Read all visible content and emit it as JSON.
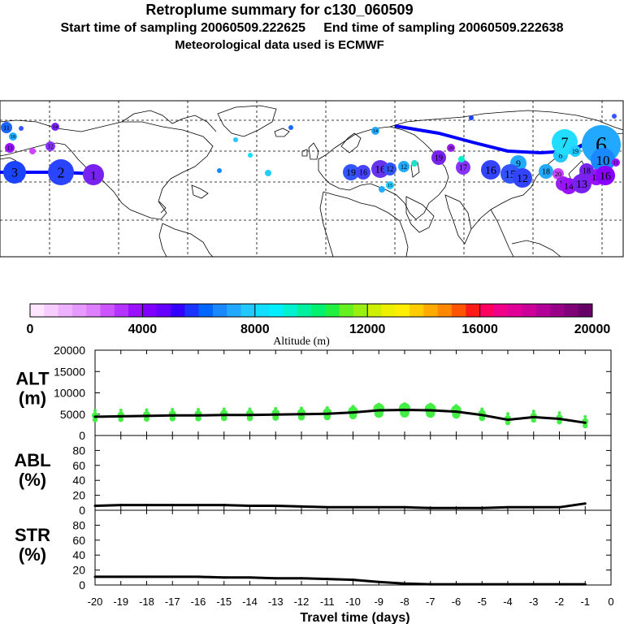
{
  "header": {
    "title": "Retroplume summary for c130_060509",
    "sampling": "Start time of sampling 20060509.222625     End time of sampling 20060509.222638",
    "meteo": "Meteorological data used is ECMWF"
  },
  "map": {
    "trajectory_labels": [
      "20",
      "19",
      "18",
      "17",
      "16",
      "15",
      "14",
      "13",
      "12",
      "11",
      "10",
      "9",
      "8",
      "7",
      "6",
      "5",
      "4",
      "3",
      "2",
      "1"
    ]
  },
  "colorbar": {
    "colors": [
      "#ffe6ff",
      "#f7ccff",
      "#efb2ff",
      "#e699ff",
      "#dd7fff",
      "#cc55ff",
      "#b533ff",
      "#9911ff",
      "#8000ff",
      "#6600ff",
      "#3300ff",
      "#1a33ff",
      "#0066ff",
      "#1a88ff",
      "#22a8ff",
      "#22c8ff",
      "#11ddff",
      "#00eeff",
      "#00f0d0",
      "#00f0a0",
      "#00f070",
      "#22f040",
      "#66f020",
      "#99f010",
      "#ccf000",
      "#eef000",
      "#ffee00",
      "#ffcc00",
      "#ffaa00",
      "#ff8800",
      "#ff5500",
      "#ff1a1a",
      "#ff0060",
      "#f0008a",
      "#e00098",
      "#cc0099",
      "#b30099",
      "#990088",
      "#800077",
      "#660066"
    ],
    "ticks": [
      "0",
      "4000",
      "8000",
      "12000",
      "16000",
      "20000"
    ],
    "label": "Altitude (m)"
  },
  "chart_data": [
    {
      "type": "line",
      "name": "ALT",
      "ylabel": "ALT\n(m)",
      "yticks": [
        "20000",
        "15000",
        "10000",
        "5000",
        "0"
      ],
      "ylim": [
        0,
        20000
      ],
      "x": [
        -20,
        -19,
        -18,
        -17,
        -16,
        -15,
        -14,
        -13,
        -12,
        -11,
        -10,
        -9,
        -8,
        -7,
        -6,
        -5,
        -4,
        -3,
        -2,
        -1
      ],
      "values": [
        4400,
        4500,
        4600,
        4700,
        4700,
        4800,
        4800,
        4900,
        5000,
        5100,
        5400,
        5900,
        6000,
        5900,
        5600,
        4800,
        3700,
        4300,
        3900,
        3000
      ]
    },
    {
      "type": "line",
      "name": "ABL",
      "ylabel": "ABL\n(%)",
      "yticks": [
        "80",
        "60",
        "40",
        "20",
        "0"
      ],
      "ylim": [
        0,
        100
      ],
      "x": [
        -20,
        -19,
        -18,
        -17,
        -16,
        -15,
        -14,
        -13,
        -12,
        -11,
        -10,
        -9,
        -8,
        -7,
        -6,
        -5,
        -4,
        -3,
        -2,
        -1
      ],
      "values": [
        6,
        7,
        7,
        7,
        7,
        7,
        6,
        6,
        5,
        4,
        4,
        4,
        4,
        3,
        3,
        3,
        4,
        4,
        4,
        9
      ]
    },
    {
      "type": "line",
      "name": "STR",
      "ylabel": "STR\n(%)",
      "yticks": [
        "80",
        "60",
        "40",
        "20",
        "0"
      ],
      "ylim": [
        0,
        100
      ],
      "x": [
        -20,
        -19,
        -18,
        -17,
        -16,
        -15,
        -14,
        -13,
        -12,
        -11,
        -10,
        -9,
        -8,
        -7,
        -6,
        -5,
        -4,
        -3,
        -2,
        -1
      ],
      "values": [
        11,
        11,
        11,
        11,
        11,
        10,
        10,
        9,
        9,
        8,
        7,
        4,
        2,
        1,
        1,
        1,
        1,
        1,
        1,
        1
      ]
    }
  ],
  "x_axis": {
    "ticks": [
      "-20",
      "-19",
      "-18",
      "-17",
      "-16",
      "-15",
      "-14",
      "-13",
      "-12",
      "-11",
      "-10",
      "-9",
      "-8",
      "-7",
      "-6",
      "-5",
      "-4",
      "-3",
      "-2",
      "-1",
      "0"
    ],
    "label": "Travel time (days)"
  }
}
